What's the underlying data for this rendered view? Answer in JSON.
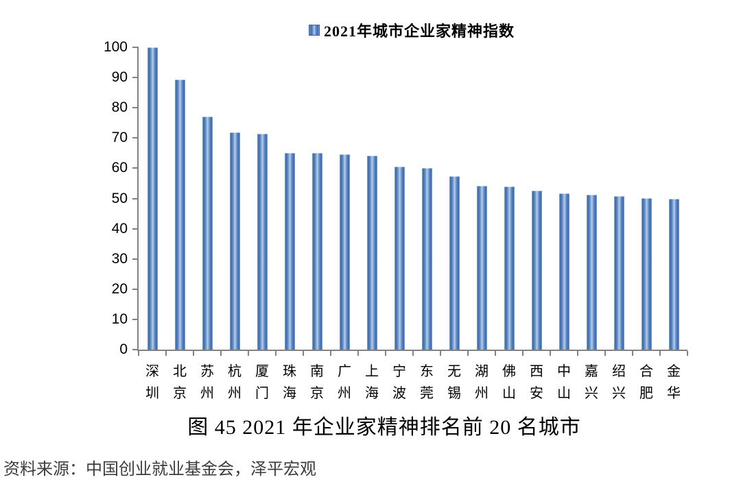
{
  "legend": {
    "label": "2021年城市企业家精神指数"
  },
  "caption": {
    "text": "图 45 2021 年企业家精神排名前 20 名城市"
  },
  "source": {
    "text": "资料来源：中国创业就业基金会，泽平宏观"
  },
  "colors": {
    "bar_edge": "#3a6cb5",
    "bar_center": "#bccee7",
    "axis": "#828282",
    "text": "#000000"
  },
  "chart_data": {
    "type": "bar",
    "title": "2021年城市企业家精神指数",
    "legend_entries": [
      "2021年城市企业家精神指数"
    ],
    "legend_position": "top-center",
    "categories": [
      "深圳",
      "北京",
      "苏州",
      "杭州",
      "厦门",
      "珠海",
      "南京",
      "广州",
      "上海",
      "宁波",
      "东莞",
      "无锡",
      "湖州",
      "佛山",
      "西安",
      "中山",
      "嘉兴",
      "绍兴",
      "合肥",
      "金华"
    ],
    "values": [
      100,
      89.3,
      77,
      71.8,
      71.5,
      65.1,
      65,
      64.6,
      64.1,
      60.5,
      60,
      57.3,
      54.2,
      54,
      52.7,
      51.6,
      51.2,
      50.7,
      50.2,
      50
    ],
    "xlabel": "",
    "ylabel": "",
    "ylim": [
      0,
      100
    ],
    "ytick_step": 10,
    "grid": false
  }
}
